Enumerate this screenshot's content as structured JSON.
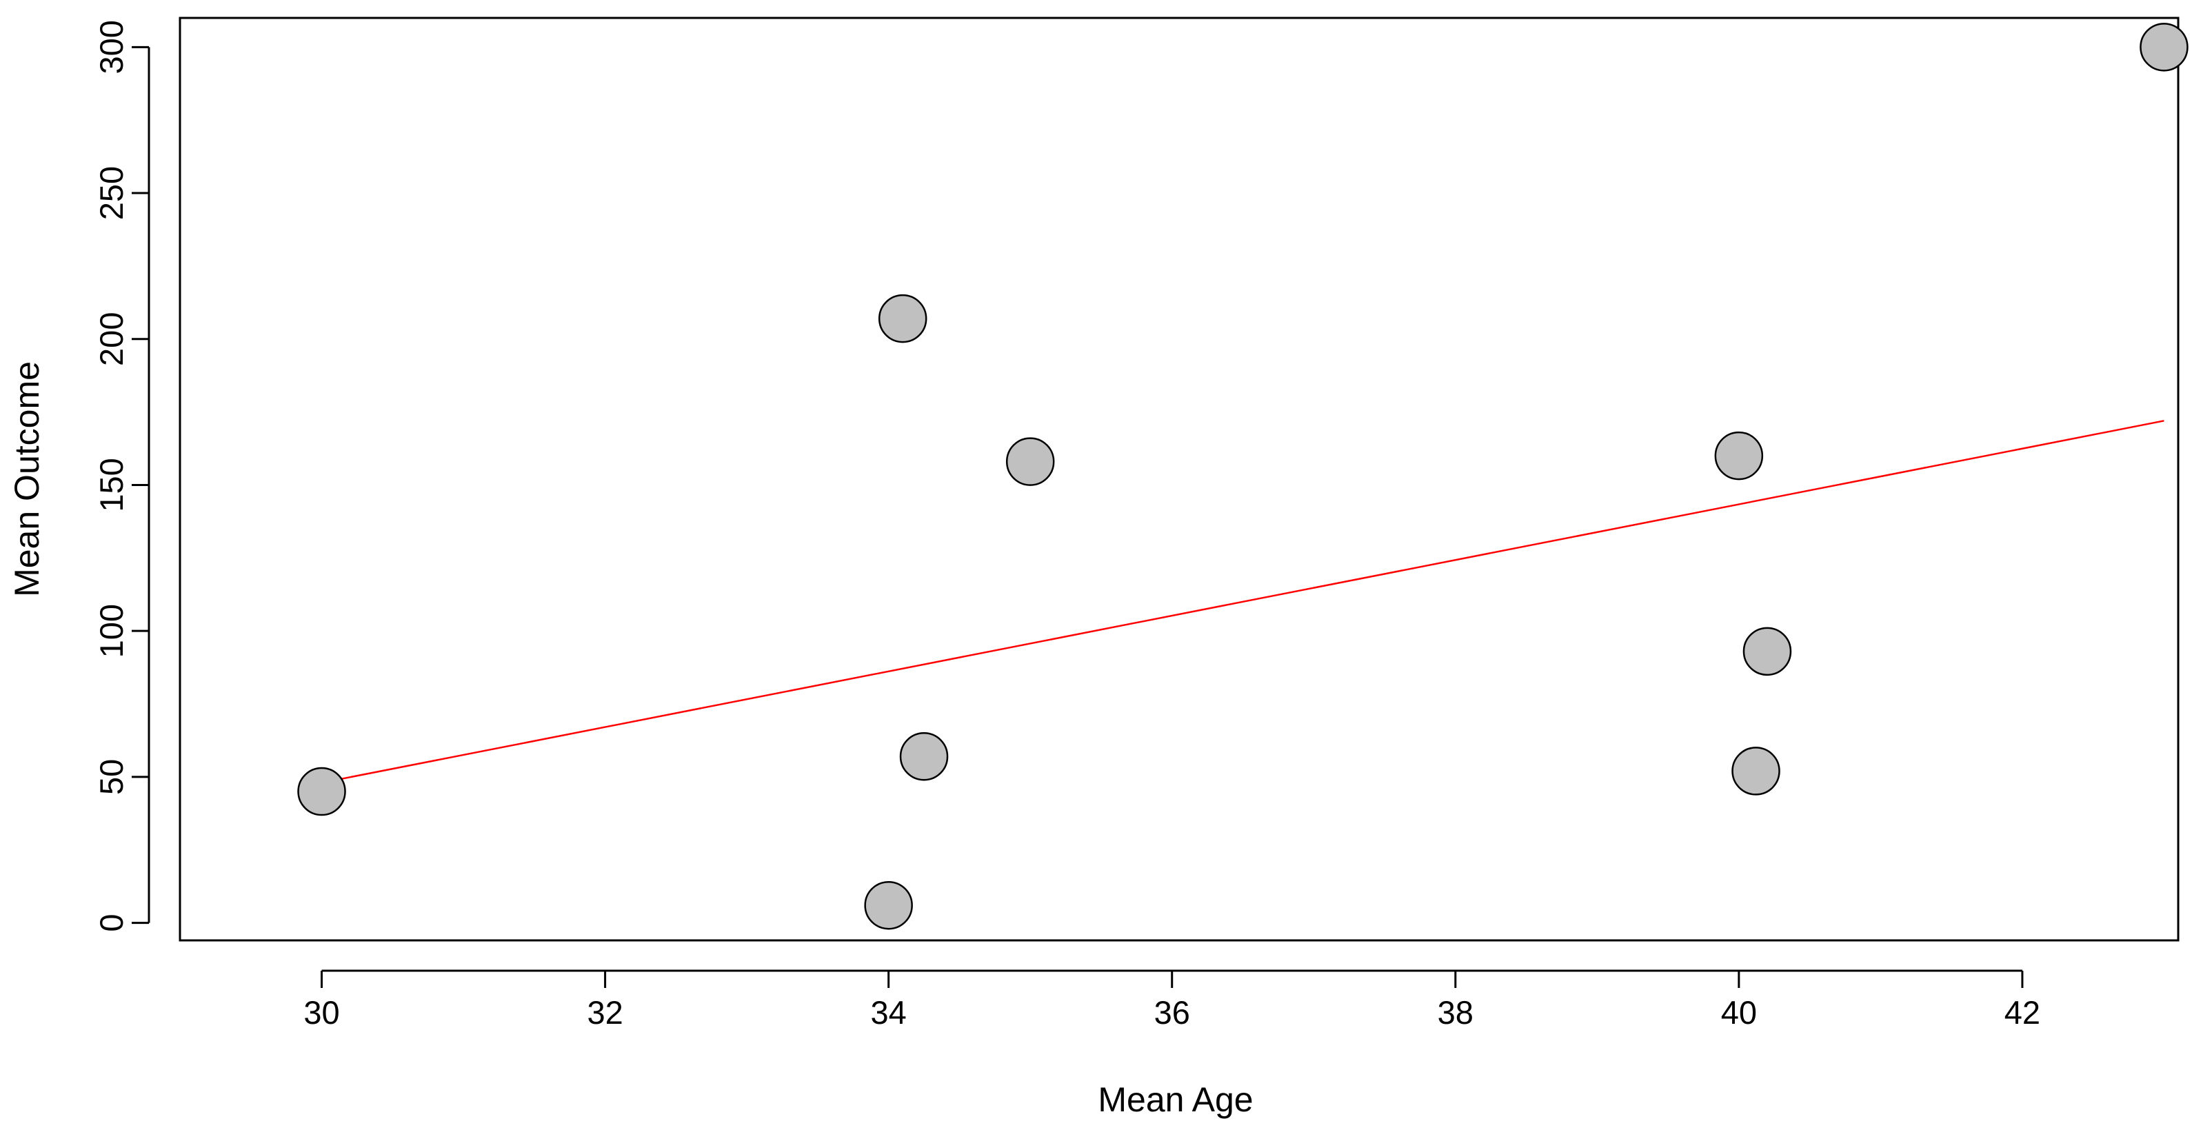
{
  "chart_data": {
    "type": "scatter",
    "title": "",
    "xlabel": "Mean Age",
    "ylabel": "Mean Outcome",
    "xlim": [
      29,
      43.1
    ],
    "ylim": [
      -6,
      310
    ],
    "x_ticks": [
      30,
      32,
      34,
      36,
      38,
      40,
      42
    ],
    "y_ticks": [
      0,
      50,
      100,
      150,
      200,
      250,
      300
    ],
    "grid": false,
    "legend": "none",
    "points": [
      {
        "x": 30.0,
        "y": 45
      },
      {
        "x": 34.0,
        "y": 6
      },
      {
        "x": 34.1,
        "y": 207
      },
      {
        "x": 34.25,
        "y": 57
      },
      {
        "x": 35.0,
        "y": 158
      },
      {
        "x": 40.0,
        "y": 160
      },
      {
        "x": 40.12,
        "y": 52
      },
      {
        "x": 40.2,
        "y": 93
      },
      {
        "x": 43.0,
        "y": 300
      }
    ],
    "regression_line": {
      "x": [
        30.0,
        43.0
      ],
      "y": [
        48,
        172
      ]
    },
    "colors": {
      "point_fill": "#c0c0c0",
      "point_stroke": "#000000",
      "line": "#ff0000",
      "axis": "#000000"
    }
  }
}
